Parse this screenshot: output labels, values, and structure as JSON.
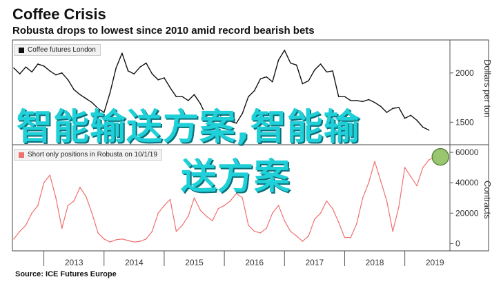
{
  "header": {
    "title": "Coffee Crisis",
    "subtitle": "Robusta drops to lowest since 2010 amid record bearish bets"
  },
  "source": "Source: ICE Futures Europe",
  "watermark": {
    "line1": "智能输送方案,智能输",
    "line2": "送方案"
  },
  "colors": {
    "price_line": "#111111",
    "positions_line": "#f07070",
    "highlight_fill": "#8fc060",
    "watermark": "#1fd0d8"
  },
  "chart_data": [
    {
      "type": "line",
      "title": "",
      "legend": [
        "Coffee futures London"
      ],
      "legend_placement": "top-left",
      "xlabel": "",
      "ylabel": "Dollars per ton",
      "y_axis_side": "right",
      "ylim": [
        1300,
        2320
      ],
      "yticks": [
        1500,
        2000
      ],
      "x_ticks": [
        "2013",
        "2014",
        "2015",
        "2016",
        "2017",
        "2018",
        "2019"
      ],
      "xlim": [
        2012.5,
        2019.75
      ],
      "grid": false,
      "series": [
        {
          "name": "Coffee futures London",
          "color": "#111111",
          "x": [
            2012.5,
            2012.6,
            2012.7,
            2012.8,
            2012.9,
            2013.0,
            2013.1,
            2013.2,
            2013.3,
            2013.4,
            2013.5,
            2013.6,
            2013.7,
            2013.8,
            2013.9,
            2014.0,
            2014.1,
            2014.2,
            2014.3,
            2014.4,
            2014.5,
            2014.6,
            2014.7,
            2014.8,
            2014.9,
            2015.0,
            2015.1,
            2015.2,
            2015.3,
            2015.4,
            2015.5,
            2015.6,
            2015.7,
            2015.8,
            2015.9,
            2016.0,
            2016.1,
            2016.2,
            2016.3,
            2016.4,
            2016.5,
            2016.6,
            2016.7,
            2016.8,
            2016.9,
            2017.0,
            2017.1,
            2017.2,
            2017.3,
            2017.4,
            2017.5,
            2017.6,
            2017.7,
            2017.8,
            2017.9,
            2018.0,
            2018.1,
            2018.2,
            2018.3,
            2018.4,
            2018.5,
            2018.6,
            2018.7,
            2018.8,
            2018.9,
            2019.0,
            2019.1,
            2019.2,
            2019.3,
            2019.4
          ],
          "values": [
            2050,
            1990,
            2060,
            2010,
            2090,
            2070,
            2020,
            1980,
            2000,
            1930,
            1830,
            1780,
            1740,
            1700,
            1640,
            1600,
            1800,
            2050,
            2200,
            2020,
            1990,
            2060,
            2100,
            1990,
            1930,
            1950,
            1850,
            1760,
            1760,
            1720,
            1780,
            1690,
            1560,
            1600,
            1590,
            1520,
            1510,
            1490,
            1590,
            1760,
            1820,
            1940,
            1960,
            1910,
            2130,
            2230,
            2100,
            2080,
            1890,
            1920,
            2030,
            2090,
            2010,
            2020,
            1760,
            1760,
            1720,
            1720,
            1710,
            1730,
            1700,
            1660,
            1600,
            1640,
            1650,
            1540,
            1570,
            1520,
            1450,
            1420
          ]
        }
      ]
    },
    {
      "type": "line",
      "title": "",
      "legend": [
        "Short only positions in Robusta on 10/1/19"
      ],
      "legend_placement": "top-left",
      "xlabel": "",
      "ylabel": "Contracts",
      "y_axis_side": "right",
      "ylim": [
        -3000,
        65000
      ],
      "yticks": [
        0,
        20000,
        40000,
        60000
      ],
      "x_ticks": [
        "2013",
        "2014",
        "2015",
        "2016",
        "2017",
        "2018",
        "2019"
      ],
      "xlim": [
        2012.5,
        2019.75
      ],
      "grid": false,
      "highlight_point": {
        "x": 2019.5,
        "y": 57000
      },
      "series": [
        {
          "name": "Short only positions in Robusta on 10/1/19",
          "color": "#f07070",
          "x": [
            2012.5,
            2012.6,
            2012.7,
            2012.8,
            2012.9,
            2013.0,
            2013.1,
            2013.2,
            2013.3,
            2013.4,
            2013.5,
            2013.6,
            2013.7,
            2013.8,
            2013.9,
            2014.0,
            2014.1,
            2014.2,
            2014.3,
            2014.4,
            2014.5,
            2014.6,
            2014.7,
            2014.8,
            2014.9,
            2015.0,
            2015.1,
            2015.2,
            2015.3,
            2015.4,
            2015.5,
            2015.6,
            2015.7,
            2015.8,
            2015.9,
            2016.0,
            2016.1,
            2016.2,
            2016.3,
            2016.4,
            2016.5,
            2016.6,
            2016.7,
            2016.8,
            2016.9,
            2017.0,
            2017.1,
            2017.2,
            2017.3,
            2017.4,
            2017.5,
            2017.6,
            2017.7,
            2017.8,
            2017.9,
            2018.0,
            2018.1,
            2018.2,
            2018.3,
            2018.4,
            2018.5,
            2018.6,
            2018.7,
            2018.8,
            2018.9,
            2019.0,
            2019.1,
            2019.2,
            2019.3,
            2019.4,
            2019.5
          ],
          "values": [
            3000,
            8000,
            12000,
            20000,
            25000,
            40000,
            45000,
            30000,
            10000,
            25000,
            28000,
            37000,
            31000,
            20000,
            7000,
            3000,
            1000,
            2500,
            3000,
            2000,
            1000,
            1500,
            3000,
            8000,
            20000,
            25000,
            29000,
            8000,
            12000,
            18000,
            30000,
            22000,
            18000,
            15000,
            23000,
            25000,
            28000,
            33000,
            30000,
            12000,
            8000,
            7000,
            10000,
            20000,
            25000,
            15000,
            8000,
            5000,
            1500,
            5000,
            16000,
            20000,
            28000,
            23000,
            14000,
            4000,
            4000,
            13000,
            30000,
            40000,
            54000,
            41000,
            28000,
            8000,
            24000,
            50000,
            44000,
            38000,
            50000,
            55000,
            57000
          ]
        }
      ]
    }
  ]
}
